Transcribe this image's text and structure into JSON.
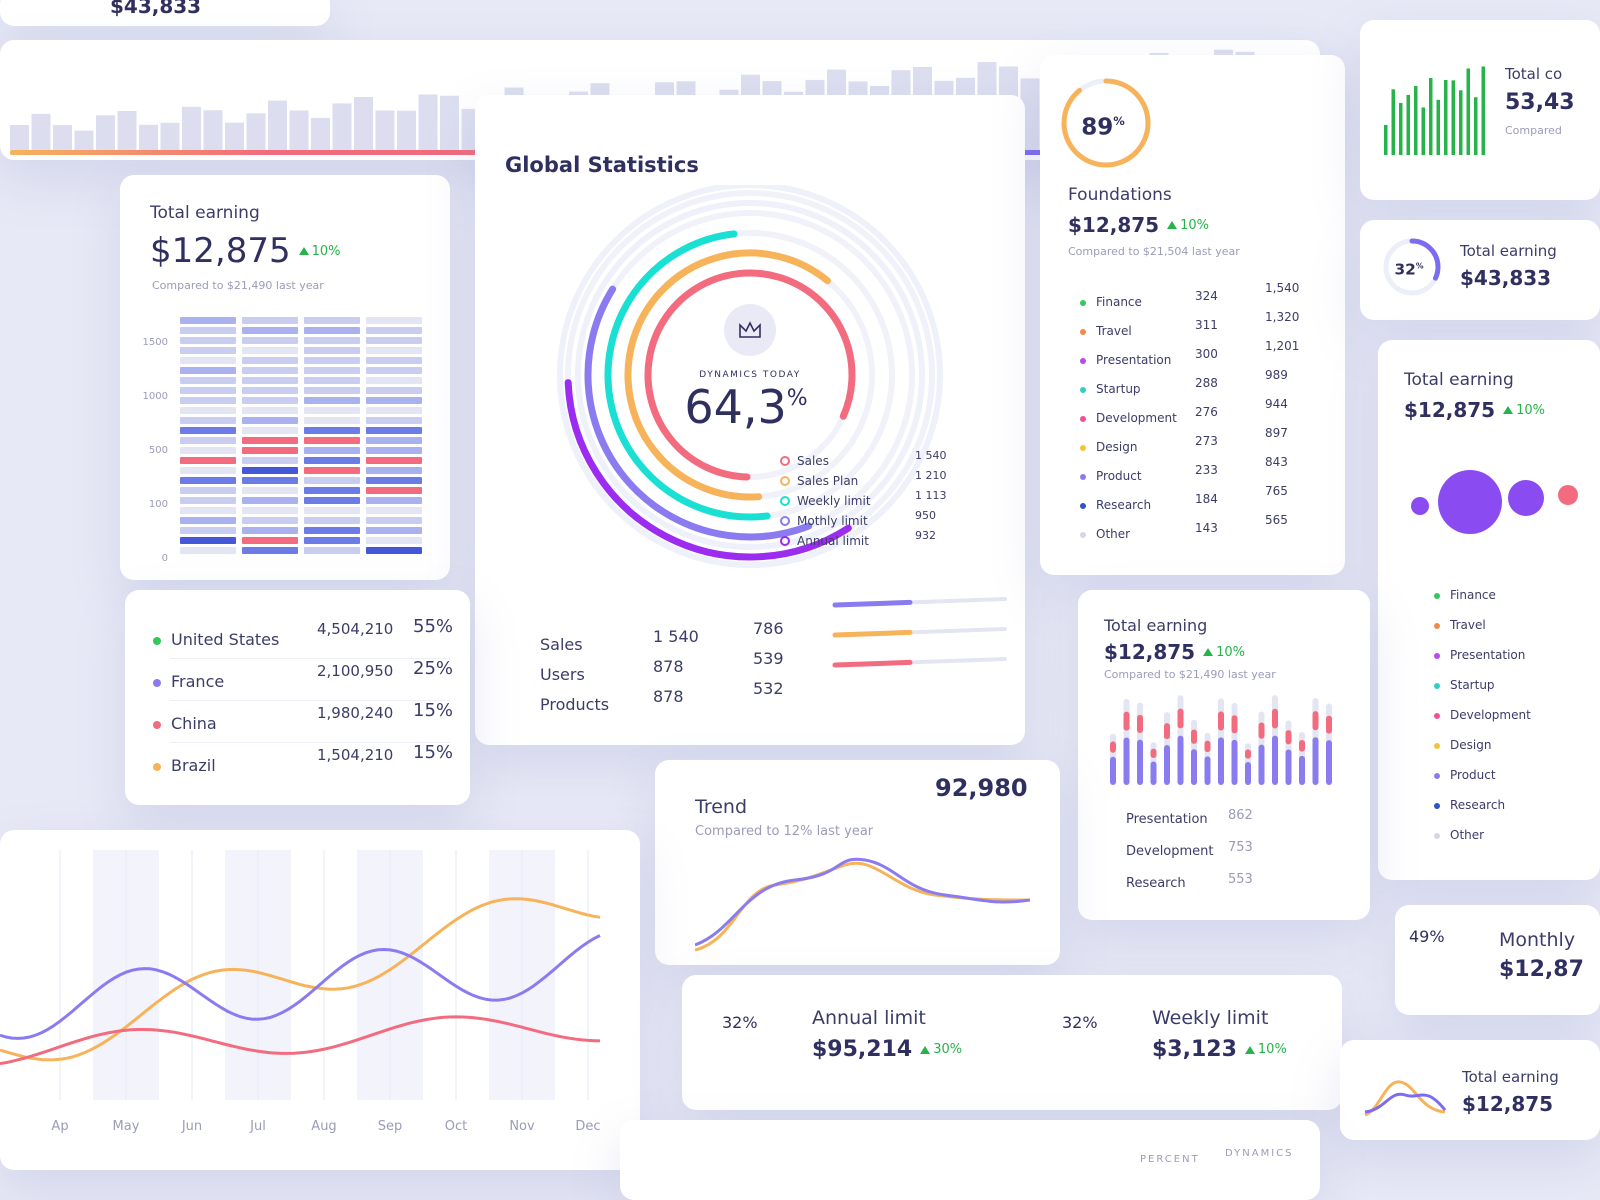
{
  "top_strip": {
    "amount": "$43,833"
  },
  "earning_card": {
    "title": "Total earning",
    "amount": "$12,875",
    "change": "10%",
    "note": "Compared to $21,490 last year",
    "y_labels": [
      "1500",
      "1000",
      "500",
      "100",
      "0"
    ]
  },
  "global_statistics": {
    "title": "Global Statistics",
    "caption": "DYNAMICS TODAY",
    "value": "64,3",
    "unit": "%",
    "legend": [
      {
        "label": "Sales",
        "value": "1 540"
      },
      {
        "label": "Sales Plan",
        "value": "1 210"
      },
      {
        "label": "Weekly limit",
        "value": "1 113"
      },
      {
        "label": "Mothly limit",
        "value": "950"
      },
      {
        "label": "Annual limit",
        "value": "932"
      }
    ],
    "table": [
      {
        "label": "Sales",
        "a": "1 540",
        "b": "786"
      },
      {
        "label": "Users",
        "a": "878",
        "b": "539"
      },
      {
        "label": "Products",
        "a": "878",
        "b": "532"
      }
    ]
  },
  "foundations": {
    "percent": 89,
    "unit": "%",
    "title": "Foundations",
    "amount": "$12,875",
    "change": "10%",
    "note": "Compared to $21,504 last year",
    "rows": [
      {
        "label": "Finance",
        "a": "324",
        "b": "1,540"
      },
      {
        "label": "Travel",
        "a": "311",
        "b": "1,320"
      },
      {
        "label": "Presentation",
        "a": "300",
        "b": "1,201"
      },
      {
        "label": "Startup",
        "a": "288",
        "b": "989"
      },
      {
        "label": "Development",
        "a": "276",
        "b": "944"
      },
      {
        "label": "Design",
        "a": "273",
        "b": "897"
      },
      {
        "label": "Product",
        "a": "233",
        "b": "843"
      },
      {
        "label": "Research",
        "a": "184",
        "b": "765"
      },
      {
        "label": "Other",
        "a": "143",
        "b": "565"
      }
    ]
  },
  "countries": [
    {
      "name": "United States",
      "value": "4,504,210",
      "share": "55%"
    },
    {
      "name": "France",
      "value": "2,100,950",
      "share": "25%"
    },
    {
      "name": "China",
      "value": "1,980,240",
      "share": "15%"
    },
    {
      "name": "Brazil",
      "value": "1,504,210",
      "share": "15%"
    }
  ],
  "earning_bars": {
    "title": "Total earning",
    "amount": "$12,875",
    "change": "10%",
    "note": "Compared to $21,490 last year",
    "rows": [
      {
        "label": "Presentation",
        "value": "862"
      },
      {
        "label": "Development",
        "value": "753"
      },
      {
        "label": "Research",
        "value": "553"
      }
    ]
  },
  "trend": {
    "title": "Trend",
    "note": "Compared to 12% last year",
    "value": "92,980"
  },
  "line_chart": {
    "months": [
      "Ap",
      "May",
      "Jun",
      "Jul",
      "Aug",
      "Sep",
      "Oct",
      "Nov",
      "Dec"
    ]
  },
  "limits": [
    {
      "percent": 32,
      "unit": "%",
      "title": "Annual limit",
      "amount": "$95,214",
      "change": "30%"
    },
    {
      "percent": 32,
      "unit": "%",
      "title": "Weekly limit",
      "amount": "$3,123",
      "change": "10%"
    },
    {
      "percent": 49,
      "unit": "%",
      "title": "Monthly",
      "amount": "$12,87"
    }
  ],
  "right_column": {
    "total_card": {
      "title": "Total co",
      "value": "53,43",
      "note": "Compared"
    },
    "earning_small": {
      "percent": 32,
      "unit": "%",
      "title": "Total earning",
      "amount": "$43,833"
    },
    "earning_list": {
      "title": "Total earning",
      "amount": "$12,875",
      "change": "10%",
      "items": [
        "Finance",
        "Travel",
        "Presentation",
        "Startup",
        "Development",
        "Design",
        "Product",
        "Research",
        "Other"
      ]
    },
    "earning_bottom": {
      "title": "Total earning",
      "amount": "$12,875"
    }
  },
  "footer_labels": [
    "PERCENT",
    "DYNAMICS"
  ]
}
